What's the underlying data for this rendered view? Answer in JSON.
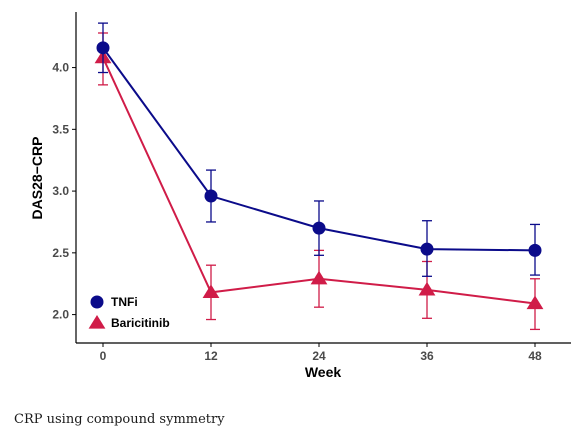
{
  "chart_data": {
    "type": "line",
    "title": "",
    "xlabel": "Week",
    "ylabel": "DAS28−CRP",
    "x": [
      0,
      12,
      24,
      36,
      48
    ],
    "x_ticks": [
      "0",
      "12",
      "24",
      "36",
      "48"
    ],
    "y_ticks": [
      "2.0",
      "2.5",
      "3.0",
      "3.5",
      "4.0"
    ],
    "xlim": [
      -3,
      52
    ],
    "ylim": [
      1.77,
      4.45
    ],
    "grid": false,
    "legend_position": "bottom-left",
    "series": [
      {
        "name": "TNFi",
        "color": "#0b0b8a",
        "marker": "circle",
        "values": [
          4.16,
          2.96,
          2.7,
          2.53,
          2.52
        ],
        "lower": [
          3.96,
          2.75,
          2.48,
          2.31,
          2.32
        ],
        "upper": [
          4.36,
          3.17,
          2.92,
          2.76,
          2.73
        ]
      },
      {
        "name": "Baricitinib",
        "color": "#d01c48",
        "marker": "triangle",
        "values": [
          4.08,
          2.18,
          2.29,
          2.2,
          2.09
        ],
        "lower": [
          3.86,
          1.96,
          2.06,
          1.97,
          1.88
        ],
        "upper": [
          4.28,
          2.4,
          2.52,
          2.43,
          2.29
        ]
      }
    ]
  },
  "caption": "CRP using compound symmetry"
}
